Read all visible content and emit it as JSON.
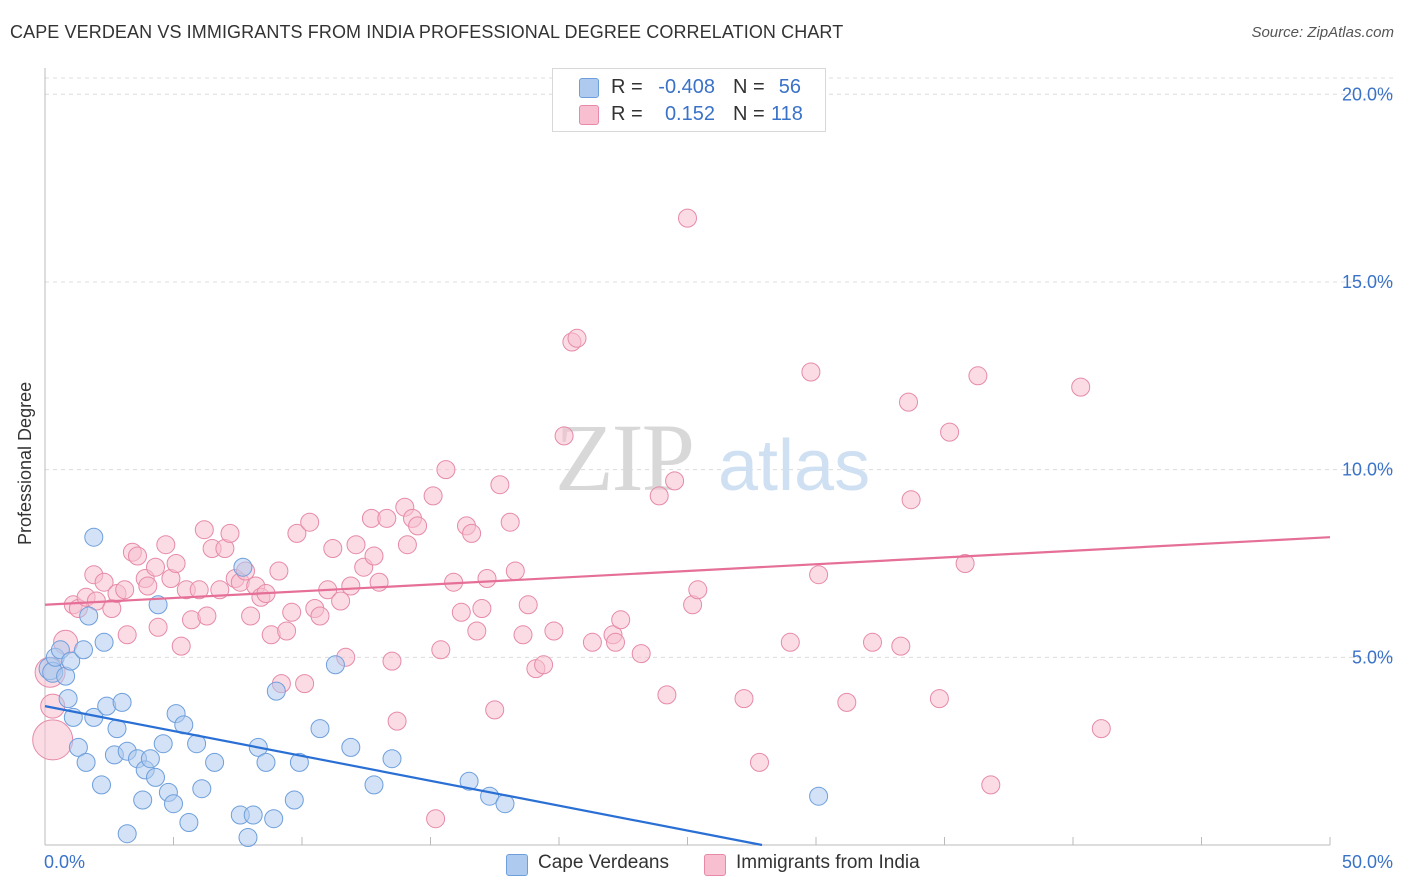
{
  "title": "CAPE VERDEAN VS IMMIGRANTS FROM INDIA PROFESSIONAL DEGREE CORRELATION CHART",
  "source": "Source: ZipAtlas.com",
  "legend": {
    "r_label": "R =",
    "n_label": "N =",
    "series1": {
      "r": "-0.408",
      "n": "56"
    },
    "series2": {
      "r": "0.152",
      "n": "118"
    }
  },
  "bottom_legend": [
    "Cape Verdeans",
    "Immigrants from India"
  ],
  "colors": {
    "blue_fill": "#aecbef",
    "blue_stroke": "#6e9fdc",
    "blue_line": "#2a6fd4",
    "pink_fill": "#f7bfd0",
    "pink_stroke": "#e68aa8",
    "pink_line": "#e56f97",
    "tick_text": "#3a72c8",
    "grid": "#dcdcdc"
  },
  "chart_data": {
    "type": "scatter",
    "title": "CAPE VERDEAN VS IMMIGRANTS FROM INDIA PROFESSIONAL DEGREE CORRELATION CHART",
    "xlabel": "",
    "ylabel": "Professional Degree",
    "xlim": [
      0,
      50
    ],
    "ylim": [
      0,
      20.7
    ],
    "x_ticks": [
      "0.0%",
      "50.0%"
    ],
    "y_ticks": [
      "5.0%",
      "10.0%",
      "15.0%",
      "20.0%"
    ],
    "y_tick_values": [
      5,
      10,
      15,
      20
    ],
    "grid": "horizontal dashed",
    "legend_position": "top-center",
    "series": [
      {
        "name": "Cape Verdeans",
        "trend": {
          "x": [
            0,
            27.9
          ],
          "y": [
            3.7,
            0.0
          ]
        },
        "points": [
          [
            0.2,
            4.7
          ],
          [
            0.3,
            4.6
          ],
          [
            0.4,
            5.0
          ],
          [
            0.6,
            5.2
          ],
          [
            0.8,
            4.5
          ],
          [
            0.9,
            3.9
          ],
          [
            1.0,
            4.9
          ],
          [
            1.1,
            3.4
          ],
          [
            1.3,
            2.6
          ],
          [
            1.5,
            5.2
          ],
          [
            1.6,
            2.2
          ],
          [
            1.7,
            6.1
          ],
          [
            1.9,
            8.2
          ],
          [
            1.9,
            3.4
          ],
          [
            2.2,
            1.6
          ],
          [
            2.3,
            5.4
          ],
          [
            2.4,
            3.7
          ],
          [
            2.7,
            2.4
          ],
          [
            2.8,
            3.1
          ],
          [
            3.0,
            3.8
          ],
          [
            3.2,
            2.5
          ],
          [
            3.2,
            0.3
          ],
          [
            3.6,
            2.3
          ],
          [
            3.8,
            1.2
          ],
          [
            3.9,
            2.0
          ],
          [
            4.1,
            2.3
          ],
          [
            4.3,
            1.8
          ],
          [
            4.4,
            6.4
          ],
          [
            4.6,
            2.7
          ],
          [
            4.8,
            1.4
          ],
          [
            5.0,
            1.1
          ],
          [
            5.1,
            3.5
          ],
          [
            5.4,
            3.2
          ],
          [
            5.6,
            0.6
          ],
          [
            5.9,
            2.7
          ],
          [
            6.1,
            1.5
          ],
          [
            6.6,
            2.2
          ],
          [
            7.6,
            0.8
          ],
          [
            7.7,
            7.4
          ],
          [
            7.9,
            0.2
          ],
          [
            8.1,
            0.8
          ],
          [
            8.3,
            2.6
          ],
          [
            8.6,
            2.2
          ],
          [
            8.9,
            0.7
          ],
          [
            9.0,
            4.1
          ],
          [
            9.7,
            1.2
          ],
          [
            9.9,
            2.2
          ],
          [
            10.7,
            3.1
          ],
          [
            11.3,
            4.8
          ],
          [
            11.9,
            2.6
          ],
          [
            12.8,
            1.6
          ],
          [
            13.5,
            2.3
          ],
          [
            16.5,
            1.7
          ],
          [
            17.3,
            1.3
          ],
          [
            17.9,
            1.1
          ],
          [
            30.1,
            1.3
          ]
        ]
      },
      {
        "name": "Immigrants from India",
        "trend": {
          "x": [
            0,
            50
          ],
          "y": [
            6.4,
            8.2
          ]
        },
        "points": [
          [
            0.2,
            4.6
          ],
          [
            0.3,
            3.7
          ],
          [
            0.3,
            2.8
          ],
          [
            0.8,
            5.4
          ],
          [
            1.1,
            6.4
          ],
          [
            1.3,
            6.3
          ],
          [
            1.6,
            6.6
          ],
          [
            1.9,
            7.2
          ],
          [
            2.0,
            6.5
          ],
          [
            2.3,
            7.0
          ],
          [
            2.6,
            6.3
          ],
          [
            2.8,
            6.7
          ],
          [
            3.1,
            6.8
          ],
          [
            3.2,
            5.6
          ],
          [
            3.4,
            7.8
          ],
          [
            3.6,
            7.7
          ],
          [
            3.9,
            7.1
          ],
          [
            4.0,
            6.9
          ],
          [
            4.3,
            7.4
          ],
          [
            4.4,
            5.8
          ],
          [
            4.7,
            8.0
          ],
          [
            4.9,
            7.1
          ],
          [
            5.1,
            7.5
          ],
          [
            5.3,
            5.3
          ],
          [
            5.5,
            6.8
          ],
          [
            5.7,
            6.0
          ],
          [
            6.0,
            6.8
          ],
          [
            6.2,
            8.4
          ],
          [
            6.3,
            6.1
          ],
          [
            6.5,
            7.9
          ],
          [
            6.8,
            6.8
          ],
          [
            7.0,
            7.9
          ],
          [
            7.2,
            8.3
          ],
          [
            7.4,
            7.1
          ],
          [
            7.6,
            7.0
          ],
          [
            7.8,
            7.3
          ],
          [
            8.0,
            6.1
          ],
          [
            8.2,
            6.9
          ],
          [
            8.4,
            6.6
          ],
          [
            8.6,
            6.7
          ],
          [
            8.8,
            5.6
          ],
          [
            9.1,
            7.3
          ],
          [
            9.2,
            4.3
          ],
          [
            9.4,
            5.7
          ],
          [
            9.6,
            6.2
          ],
          [
            9.8,
            8.3
          ],
          [
            10.1,
            4.3
          ],
          [
            10.3,
            8.6
          ],
          [
            10.5,
            6.3
          ],
          [
            10.7,
            6.1
          ],
          [
            11.0,
            6.8
          ],
          [
            11.2,
            7.9
          ],
          [
            11.5,
            6.5
          ],
          [
            11.7,
            5.0
          ],
          [
            11.9,
            6.9
          ],
          [
            12.1,
            8.0
          ],
          [
            12.4,
            7.4
          ],
          [
            12.7,
            8.7
          ],
          [
            12.8,
            7.7
          ],
          [
            13.0,
            7.0
          ],
          [
            13.3,
            8.7
          ],
          [
            13.5,
            4.9
          ],
          [
            13.7,
            3.3
          ],
          [
            14.0,
            9.0
          ],
          [
            14.1,
            8.0
          ],
          [
            14.3,
            8.7
          ],
          [
            14.5,
            8.5
          ],
          [
            15.1,
            9.3
          ],
          [
            15.2,
            0.7
          ],
          [
            15.4,
            5.2
          ],
          [
            15.6,
            10.0
          ],
          [
            15.9,
            7.0
          ],
          [
            16.2,
            6.2
          ],
          [
            16.4,
            8.5
          ],
          [
            16.6,
            8.3
          ],
          [
            16.8,
            5.7
          ],
          [
            17.0,
            6.3
          ],
          [
            17.2,
            7.1
          ],
          [
            17.5,
            3.6
          ],
          [
            17.7,
            9.6
          ],
          [
            18.1,
            8.6
          ],
          [
            18.3,
            7.3
          ],
          [
            18.6,
            5.6
          ],
          [
            18.8,
            6.4
          ],
          [
            19.1,
            4.7
          ],
          [
            19.4,
            4.8
          ],
          [
            19.8,
            5.7
          ],
          [
            20.2,
            10.9
          ],
          [
            20.5,
            13.4
          ],
          [
            20.7,
            13.5
          ],
          [
            21.3,
            5.4
          ],
          [
            22.1,
            5.6
          ],
          [
            22.2,
            5.4
          ],
          [
            22.4,
            6.0
          ],
          [
            23.2,
            5.1
          ],
          [
            23.9,
            9.3
          ],
          [
            24.2,
            4.0
          ],
          [
            24.5,
            9.7
          ],
          [
            25.0,
            16.7
          ],
          [
            25.2,
            6.4
          ],
          [
            25.4,
            6.8
          ],
          [
            27.2,
            3.9
          ],
          [
            27.8,
            2.2
          ],
          [
            29.0,
            5.4
          ],
          [
            29.8,
            12.6
          ],
          [
            30.1,
            7.2
          ],
          [
            31.2,
            3.8
          ],
          [
            32.2,
            5.4
          ],
          [
            33.3,
            5.3
          ],
          [
            33.6,
            11.8
          ],
          [
            33.7,
            9.2
          ],
          [
            34.8,
            3.9
          ],
          [
            35.2,
            11.0
          ],
          [
            35.8,
            7.5
          ],
          [
            36.3,
            12.5
          ],
          [
            36.8,
            1.6
          ],
          [
            40.3,
            12.2
          ],
          [
            41.1,
            3.1
          ]
        ]
      }
    ]
  }
}
